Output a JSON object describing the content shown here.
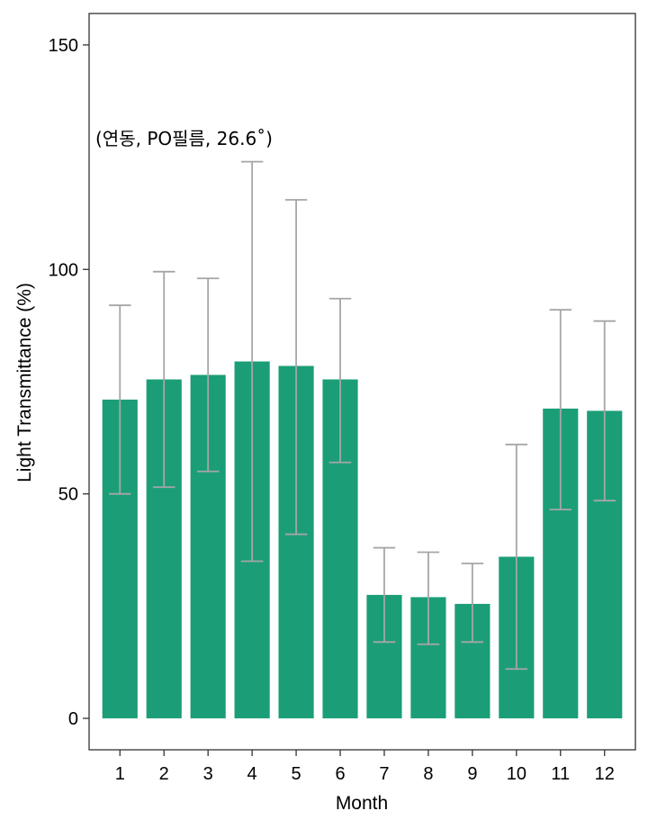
{
  "chart_data": {
    "type": "bar",
    "categories": [
      "1",
      "2",
      "3",
      "4",
      "5",
      "6",
      "7",
      "8",
      "9",
      "10",
      "11",
      "12"
    ],
    "values": [
      71,
      75.5,
      76.5,
      79.5,
      78.5,
      75.5,
      27.5,
      27,
      25.5,
      36,
      69,
      68.5
    ],
    "error_low": [
      50,
      51.5,
      55,
      35,
      41,
      57,
      17,
      16.5,
      17,
      11,
      46.5,
      48.5
    ],
    "error_high": [
      92,
      99.5,
      98,
      124,
      115.5,
      93.5,
      38,
      37,
      34.5,
      61,
      91,
      88.5
    ],
    "xlabel": "Month",
    "ylabel": "Light Transmittance (%)",
    "ylim": [
      -7,
      157
    ],
    "yticks": [
      0,
      50,
      100,
      150
    ],
    "annotation": "(연동, PO필름, 26.6˚)",
    "grid": false,
    "colors": {
      "bar": "#1b9e77",
      "error_bar": "#a6a6a6",
      "axis": "#333333"
    }
  }
}
